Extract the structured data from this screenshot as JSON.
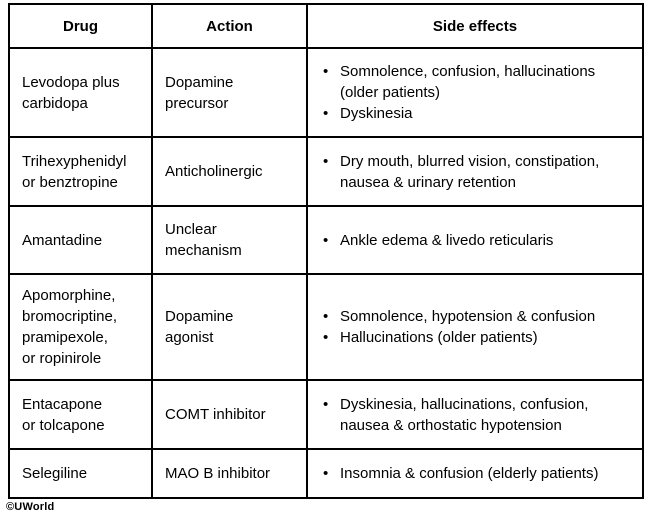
{
  "table": {
    "header": {
      "drug": "Drug",
      "action": "Action",
      "side_effects": "Side effects"
    },
    "rows": [
      {
        "drug": "Levodopa plus\ncarbidopa",
        "action": "Dopamine\nprecursor",
        "side_effects": [
          "Somnolence, confusion, hallucinations (older patients)",
          "Dyskinesia"
        ]
      },
      {
        "drug": "Trihexyphenidyl\nor benztropine",
        "action": "Anticholinergic",
        "side_effects": [
          "Dry mouth, blurred vision, constipation, nausea & urinary retention"
        ]
      },
      {
        "drug": "Amantadine",
        "action": "Unclear\nmechanism",
        "side_effects": [
          "Ankle edema & livedo reticularis"
        ]
      },
      {
        "drug": "Apomorphine,\nbromocriptine,\npramipexole,\nor ropinirole",
        "action": "Dopamine\nagonist",
        "side_effects": [
          "Somnolence, hypotension & confusion",
          "Hallucinations (older patients)"
        ]
      },
      {
        "drug": "Entacapone\nor tolcapone",
        "action": "COMT inhibitor",
        "side_effects": [
          "Dyskinesia, hallucinations, confusion, nausea & orthostatic hypotension"
        ]
      },
      {
        "drug": "Selegiline",
        "action": "MAO B inhibitor",
        "side_effects": [
          "Insomnia & confusion (elderly patients)"
        ]
      }
    ]
  },
  "footer": {
    "copyright": "©UWorld"
  },
  "colors": {
    "border": "#000000",
    "text": "#000000",
    "background": "#ffffff",
    "bullet": "#000000"
  }
}
